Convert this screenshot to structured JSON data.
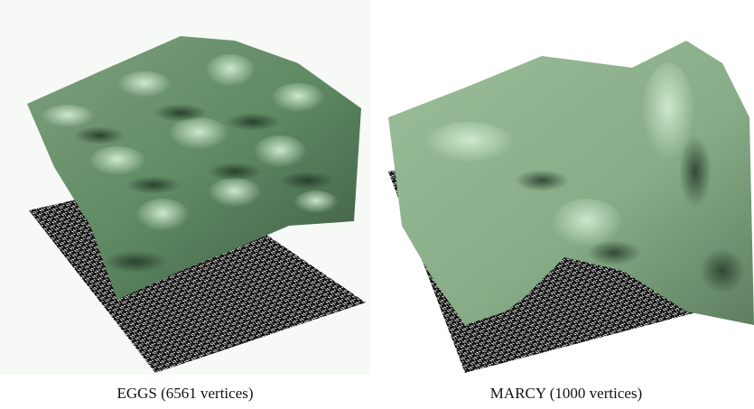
{
  "figures": [
    {
      "caption": "EGGS (6561 vertices)"
    },
    {
      "caption": "MARCY (1000 vertices)"
    }
  ]
}
